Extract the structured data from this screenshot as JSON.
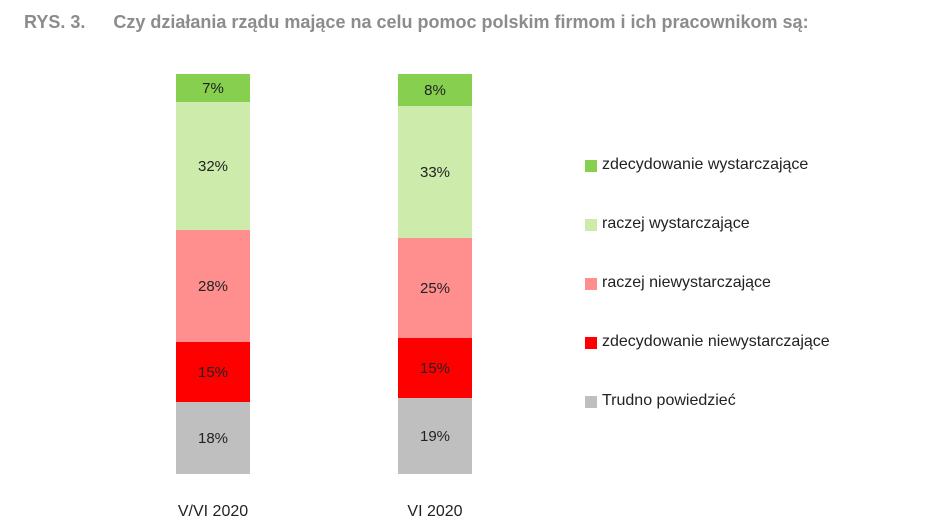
{
  "title": {
    "prefix": "RYS. 3.",
    "text": "Czy działania rządu mające na celu pomoc polskim firmom i ich pracownikom są:"
  },
  "chart_data": {
    "type": "bar",
    "stacked": true,
    "orientation": "vertical",
    "value_format": "percent",
    "categories": [
      "V/VI 2020",
      "VI 2020"
    ],
    "series": [
      {
        "name": "Trudno powiedzieć",
        "color": "#bfbfbf",
        "values": [
          18,
          19
        ]
      },
      {
        "name": "zdecydowanie niewystarczające",
        "color": "#ff0000",
        "values": [
          15,
          15
        ]
      },
      {
        "name": "raczej niewystarczające",
        "color": "#ff8f8f",
        "values": [
          28,
          25
        ]
      },
      {
        "name": "raczej wystarczające",
        "color": "#cdebab",
        "values": [
          32,
          33
        ]
      },
      {
        "name": "zdecydowanie wystarczające",
        "color": "#86cf4f",
        "values": [
          7,
          8
        ]
      }
    ],
    "legend": {
      "placement": "right",
      "order": [
        "zdecydowanie wystarczające",
        "raczej wystarczające",
        "raczej niewystarczające",
        "zdecydowanie niewystarczające",
        "Trudno powiedzieć"
      ]
    },
    "grid": false,
    "axes_visible": false
  }
}
